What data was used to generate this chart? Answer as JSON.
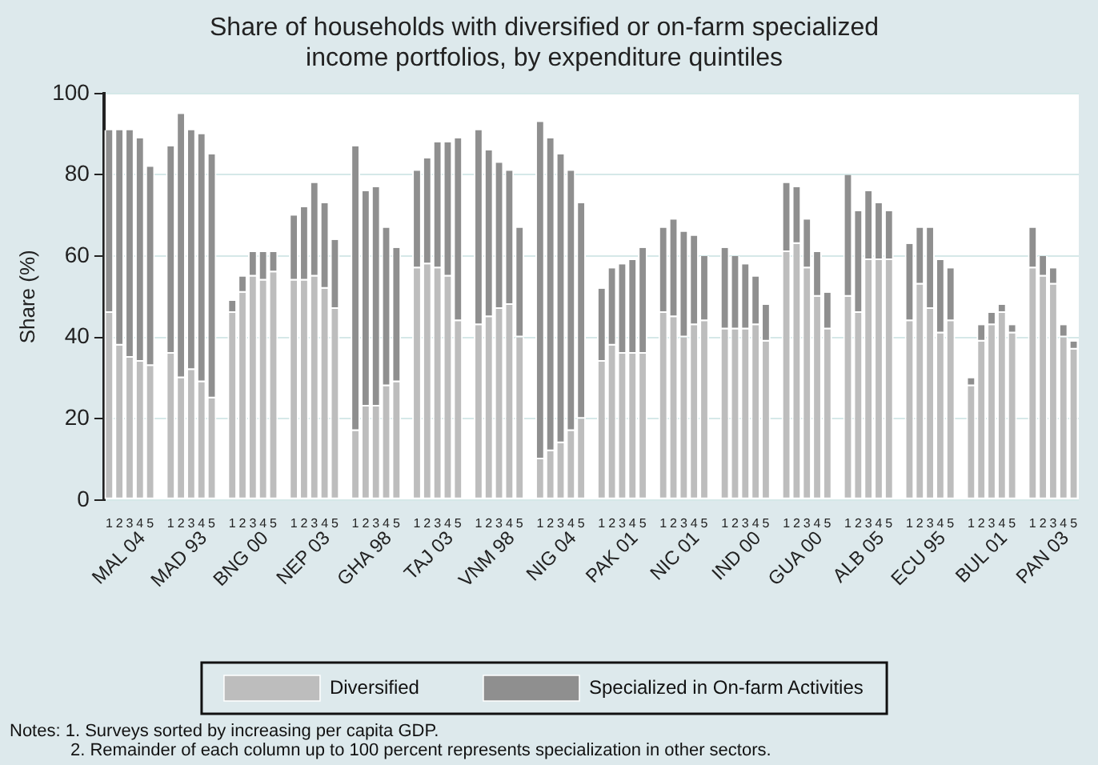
{
  "chart_data": {
    "type": "bar",
    "stacked": true,
    "title": "Share of households with diversified or on-farm specialized income portfolios, by expenditure quintiles",
    "ylabel": "Share (%)",
    "categories": [
      "1",
      "2",
      "3",
      "4",
      "5",
      null,
      "1",
      "2",
      "3",
      "4",
      "5",
      null,
      "1",
      "2",
      "3",
      "4",
      "5",
      null,
      "1",
      "2",
      "3",
      "4",
      "5",
      null,
      "1",
      "2",
      "3",
      "4",
      "5",
      null,
      "1",
      "2",
      "3",
      "4",
      "5",
      null,
      "1",
      "2",
      "3",
      "4",
      "5",
      null,
      "1",
      "2",
      "3",
      "4",
      "5",
      null,
      "1",
      "2",
      "3",
      "4",
      "5",
      null,
      "1",
      "2",
      "3",
      "4",
      "5",
      null,
      "1",
      "2",
      "3",
      "4",
      "5",
      null,
      "1",
      "2",
      "3",
      "4",
      "5",
      null,
      "1",
      "2",
      "3",
      "4",
      "5",
      null,
      "1",
      "2",
      "3",
      "4",
      "5",
      null,
      "1",
      "2",
      "3",
      "4",
      "5",
      null,
      "1",
      "2",
      "3",
      "4",
      "5"
    ],
    "series": [
      {
        "name": "Diversified",
        "color": "#bdbdbd",
        "values": [
          46,
          38,
          35,
          34,
          33,
          null,
          36,
          30,
          32,
          29,
          25,
          null,
          46,
          51,
          55,
          54,
          56,
          null,
          54,
          54,
          55,
          52,
          47,
          null,
          17,
          23,
          23,
          28,
          29,
          null,
          57,
          58,
          57,
          55,
          44,
          null,
          43,
          45,
          47,
          48,
          40,
          null,
          10,
          12,
          14,
          17,
          20,
          null,
          34,
          38,
          36,
          36,
          36,
          null,
          46,
          45,
          40,
          43,
          44,
          null,
          42,
          42,
          42,
          43,
          39,
          null,
          61,
          63,
          57,
          50,
          42,
          null,
          50,
          46,
          59,
          59,
          59,
          null,
          44,
          53,
          47,
          41,
          44,
          null,
          28,
          39,
          43,
          46,
          41,
          null,
          57,
          55,
          53,
          40,
          37
        ]
      },
      {
        "name": "Specialized in On-farm Activities",
        "color": "#8f8f8f",
        "values": [
          45,
          53,
          56,
          55,
          49,
          null,
          51,
          65,
          59,
          61,
          60,
          null,
          3,
          4,
          6,
          7,
          5,
          null,
          16,
          18,
          23,
          21,
          17,
          null,
          70,
          53,
          54,
          39,
          33,
          null,
          24,
          26,
          31,
          33,
          45,
          null,
          48,
          41,
          36,
          33,
          27,
          null,
          83,
          77,
          71,
          64,
          53,
          null,
          18,
          19,
          22,
          23,
          26,
          null,
          21,
          24,
          26,
          22,
          16,
          null,
          20,
          18,
          16,
          12,
          9,
          null,
          17,
          14,
          12,
          11,
          9,
          null,
          30,
          25,
          17,
          14,
          12,
          null,
          19,
          14,
          20,
          18,
          13,
          null,
          2,
          4,
          3,
          2,
          2,
          null,
          10,
          5,
          4,
          3,
          2
        ]
      }
    ],
    "ylim": [
      0,
      100
    ],
    "yticks": [
      0,
      20,
      40,
      60,
      80,
      100
    ],
    "grid": "y",
    "legend": "bottom",
    "annotations": [
      "MAL 04",
      "MAD 93",
      "BNG 00",
      "NEP 03",
      "GHA 98",
      "TAJ 03",
      "VNM 98",
      "NIG 04",
      "PAK 01",
      "NIC 01",
      "IND 00",
      "GUA 00",
      "ALB 05",
      "ECU 95",
      "BUL 01",
      "PAN 03",
      "Notes: 1. Surveys sorted by increasing per capita GDP.",
      "2. Remainder of each column up to 100 percent represents specialization in other sectors."
    ]
  }
}
